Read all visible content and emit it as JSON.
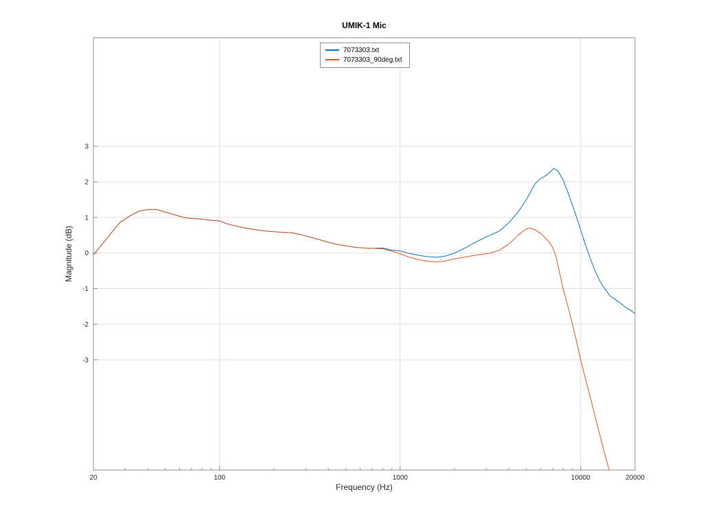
{
  "chart_data": {
    "type": "line",
    "title": "UMIK-1 Mic",
    "xlabel": "Frequency (Hz)",
    "ylabel": "Magnitude (dB)",
    "xscale": "log",
    "xlim": [
      20,
      20000
    ],
    "ylim": [
      -6.1,
      6.05
    ],
    "xticks": [
      20,
      100,
      1000,
      10000,
      20000
    ],
    "yticks": [
      3,
      2,
      1,
      0,
      -1,
      -2,
      -3
    ],
    "grid": true,
    "legend_position": "top-center",
    "colors": {
      "grid": "#e0e0e0",
      "axis": "#8c8c8c",
      "tick_text": "#262626",
      "series_blue": "#0072BD",
      "series_orange": "#D95319"
    },
    "series": [
      {
        "name": "7073303.txt",
        "color": "#0072BD",
        "points": [
          [
            20,
            -0.05
          ],
          [
            22,
            0.2
          ],
          [
            25,
            0.55
          ],
          [
            28,
            0.85
          ],
          [
            32,
            1.05
          ],
          [
            36,
            1.18
          ],
          [
            40,
            1.22
          ],
          [
            45,
            1.22
          ],
          [
            50,
            1.15
          ],
          [
            56,
            1.08
          ],
          [
            63,
            1.0
          ],
          [
            70,
            0.97
          ],
          [
            80,
            0.95
          ],
          [
            90,
            0.92
          ],
          [
            100,
            0.9
          ],
          [
            110,
            0.82
          ],
          [
            125,
            0.75
          ],
          [
            140,
            0.7
          ],
          [
            160,
            0.65
          ],
          [
            180,
            0.62
          ],
          [
            200,
            0.6
          ],
          [
            225,
            0.58
          ],
          [
            250,
            0.57
          ],
          [
            280,
            0.52
          ],
          [
            315,
            0.45
          ],
          [
            355,
            0.38
          ],
          [
            400,
            0.3
          ],
          [
            450,
            0.24
          ],
          [
            500,
            0.2
          ],
          [
            560,
            0.16
          ],
          [
            630,
            0.14
          ],
          [
            700,
            0.13
          ],
          [
            800,
            0.14
          ],
          [
            900,
            0.08
          ],
          [
            1000,
            0.06
          ],
          [
            1100,
            0.0
          ],
          [
            1250,
            -0.06
          ],
          [
            1400,
            -0.1
          ],
          [
            1600,
            -0.12
          ],
          [
            1800,
            -0.08
          ],
          [
            2000,
            0.0
          ],
          [
            2250,
            0.12
          ],
          [
            2500,
            0.25
          ],
          [
            2800,
            0.38
          ],
          [
            3150,
            0.5
          ],
          [
            3550,
            0.62
          ],
          [
            4000,
            0.85
          ],
          [
            4500,
            1.15
          ],
          [
            5000,
            1.5
          ],
          [
            5600,
            1.95
          ],
          [
            6000,
            2.1
          ],
          [
            6300,
            2.15
          ],
          [
            6700,
            2.25
          ],
          [
            7100,
            2.38
          ],
          [
            7500,
            2.3
          ],
          [
            8000,
            2.05
          ],
          [
            8500,
            1.7
          ],
          [
            9000,
            1.35
          ],
          [
            9500,
            1.0
          ],
          [
            10000,
            0.65
          ],
          [
            10600,
            0.25
          ],
          [
            11200,
            -0.1
          ],
          [
            12000,
            -0.5
          ],
          [
            12800,
            -0.8
          ],
          [
            13600,
            -1.0
          ],
          [
            14500,
            -1.2
          ],
          [
            16000,
            -1.35
          ],
          [
            17000,
            -1.45
          ],
          [
            18000,
            -1.55
          ],
          [
            19000,
            -1.62
          ],
          [
            20000,
            -1.7
          ]
        ]
      },
      {
        "name": "7073303_90deg.txt",
        "color": "#D95319",
        "points": [
          [
            20,
            -0.05
          ],
          [
            22,
            0.2
          ],
          [
            25,
            0.55
          ],
          [
            28,
            0.85
          ],
          [
            32,
            1.05
          ],
          [
            36,
            1.18
          ],
          [
            40,
            1.22
          ],
          [
            45,
            1.22
          ],
          [
            50,
            1.15
          ],
          [
            56,
            1.08
          ],
          [
            63,
            1.0
          ],
          [
            70,
            0.97
          ],
          [
            80,
            0.95
          ],
          [
            90,
            0.92
          ],
          [
            100,
            0.9
          ],
          [
            110,
            0.82
          ],
          [
            125,
            0.75
          ],
          [
            140,
            0.7
          ],
          [
            160,
            0.65
          ],
          [
            180,
            0.62
          ],
          [
            200,
            0.6
          ],
          [
            225,
            0.58
          ],
          [
            250,
            0.57
          ],
          [
            280,
            0.52
          ],
          [
            315,
            0.45
          ],
          [
            355,
            0.38
          ],
          [
            400,
            0.3
          ],
          [
            450,
            0.24
          ],
          [
            500,
            0.2
          ],
          [
            560,
            0.16
          ],
          [
            630,
            0.14
          ],
          [
            700,
            0.13
          ],
          [
            800,
            0.12
          ],
          [
            900,
            0.05
          ],
          [
            1000,
            -0.02
          ],
          [
            1100,
            -0.1
          ],
          [
            1250,
            -0.18
          ],
          [
            1400,
            -0.23
          ],
          [
            1600,
            -0.25
          ],
          [
            1800,
            -0.22
          ],
          [
            2000,
            -0.17
          ],
          [
            2250,
            -0.12
          ],
          [
            2500,
            -0.08
          ],
          [
            2800,
            -0.04
          ],
          [
            3150,
            0.0
          ],
          [
            3550,
            0.08
          ],
          [
            4000,
            0.25
          ],
          [
            4500,
            0.5
          ],
          [
            5000,
            0.68
          ],
          [
            5300,
            0.7
          ],
          [
            5600,
            0.65
          ],
          [
            6000,
            0.55
          ],
          [
            6300,
            0.45
          ],
          [
            6700,
            0.3
          ],
          [
            7000,
            0.15
          ],
          [
            7300,
            -0.1
          ],
          [
            7600,
            -0.5
          ],
          [
            8000,
            -1.0
          ],
          [
            8500,
            -1.5
          ],
          [
            9000,
            -2.0
          ],
          [
            9500,
            -2.5
          ],
          [
            10000,
            -3.0
          ],
          [
            10700,
            -3.6
          ],
          [
            11500,
            -4.2
          ],
          [
            12300,
            -4.8
          ],
          [
            13200,
            -5.4
          ],
          [
            14200,
            -6.0
          ],
          [
            14900,
            -6.4
          ]
        ]
      }
    ]
  }
}
